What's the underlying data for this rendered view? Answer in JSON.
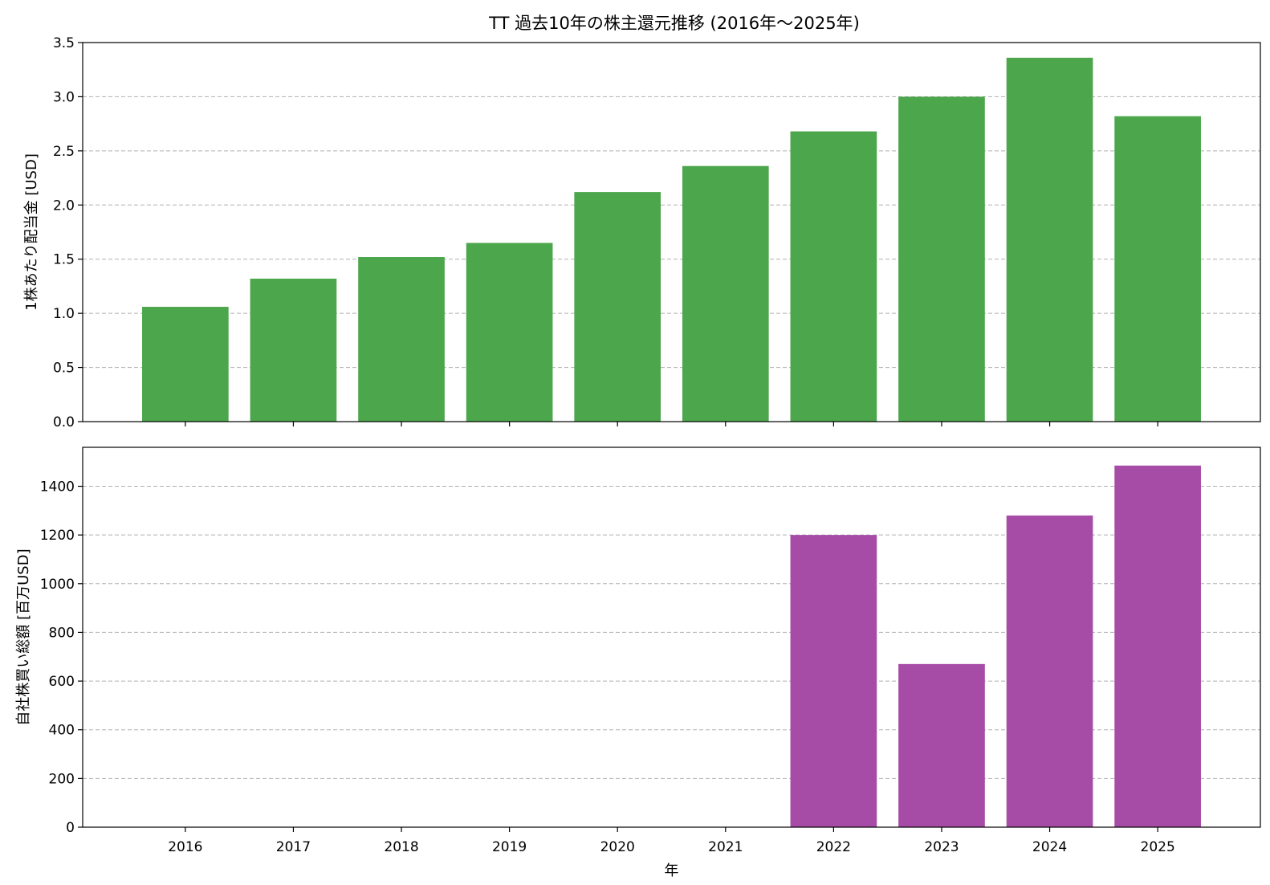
{
  "chart_data": [
    {
      "type": "bar",
      "title": "TT 過去10年の株主還元推移 (2016年～2025年)",
      "categories": [
        "2016",
        "2017",
        "2018",
        "2019",
        "2020",
        "2021",
        "2022",
        "2023",
        "2024",
        "2025"
      ],
      "values": [
        1.06,
        1.32,
        1.52,
        1.65,
        2.12,
        2.36,
        2.68,
        3.0,
        3.36,
        2.82
      ],
      "ylabel": "1株あたり配当金 [USD]",
      "ylim": [
        0,
        3.5
      ],
      "yticks": [
        0.0,
        0.5,
        1.0,
        1.5,
        2.0,
        2.5,
        3.0,
        3.5
      ],
      "ytick_labels": [
        "0.0",
        "0.5",
        "1.0",
        "1.5",
        "2.0",
        "2.5",
        "3.0",
        "3.5"
      ],
      "color": "#4ca64c",
      "grid": "y-dashed"
    },
    {
      "type": "bar",
      "categories": [
        "2016",
        "2017",
        "2018",
        "2019",
        "2020",
        "2021",
        "2022",
        "2023",
        "2024",
        "2025"
      ],
      "values": [
        0,
        0,
        0,
        0,
        0,
        0,
        1200,
        670,
        1280,
        1485
      ],
      "xlabel": "年",
      "ylabel": "自社株買い総額 [百万USD]",
      "ylim": [
        0,
        1560
      ],
      "yticks": [
        0,
        200,
        400,
        600,
        800,
        1000,
        1200,
        1400
      ],
      "ytick_labels": [
        "0",
        "200",
        "400",
        "600",
        "800",
        "1000",
        "1200",
        "1400"
      ],
      "color": "#a64ca6",
      "grid": "y-dashed"
    }
  ]
}
